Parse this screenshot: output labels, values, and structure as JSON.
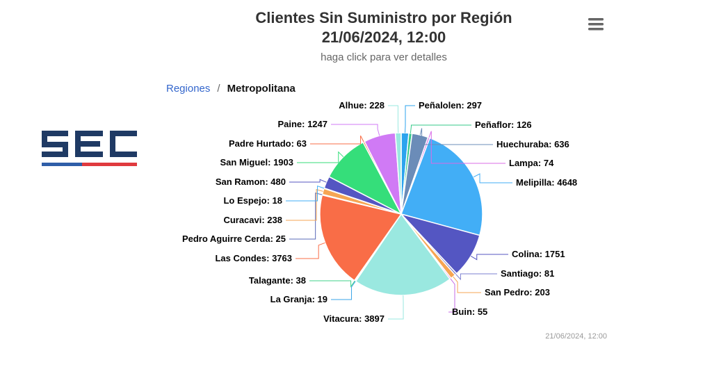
{
  "header": {
    "title_line1": "Clientes Sin Suministro por Región",
    "title_line2": "21/06/2024, 12:00",
    "subtitle": "haga click para ver detalles"
  },
  "breadcrumb": {
    "root": "Regiones",
    "separator": "/",
    "current": "Metropolitana"
  },
  "logo": {
    "text": "SEC",
    "colors": {
      "blue": "#1f3a64",
      "red": "#e03a3e"
    }
  },
  "menu": {
    "icon": "hamburger-menu-icon"
  },
  "footer": {
    "timestamp": "21/06/2024, 12:00"
  },
  "chart_data": {
    "type": "pie",
    "title": "Clientes Sin Suministro por Región",
    "subtitle": "haga click para ver detalles",
    "slices": [
      {
        "name": "Peñalolen",
        "value": 297,
        "color": "#2ca4ee"
      },
      {
        "name": "Peñaflor",
        "value": 126,
        "color": "#35c98a"
      },
      {
        "name": "Huechuraba",
        "value": 636,
        "color": "#6b8cb8"
      },
      {
        "name": "Lampa",
        "value": 74,
        "color": "#d96be6"
      },
      {
        "name": "Melipilla",
        "value": 4648,
        "color": "#42aef6"
      },
      {
        "name": "Colina",
        "value": 1751,
        "color": "#5456c2"
      },
      {
        "name": "Santiago",
        "value": 81,
        "color": "#7b7fd0"
      },
      {
        "name": "San Pedro",
        "value": 203,
        "color": "#f6a553"
      },
      {
        "name": "Buin",
        "value": 55,
        "color": "#c56ae6"
      },
      {
        "name": "Vitacura",
        "value": 3897,
        "color": "#9ae8e0"
      },
      {
        "name": "La Granja",
        "value": 19,
        "color": "#3aa5e8"
      },
      {
        "name": "Talagante",
        "value": 38,
        "color": "#3fd08a"
      },
      {
        "name": "Las Condes",
        "value": 3763,
        "color": "#f96d47"
      },
      {
        "name": "Pedro Aguirre Cerda",
        "value": 25,
        "color": "#5a69b8"
      },
      {
        "name": "Curacavi",
        "value": 238,
        "color": "#f6a553"
      },
      {
        "name": "Lo Espejo",
        "value": 18,
        "color": "#42aef6"
      },
      {
        "name": "San Ramon",
        "value": 480,
        "color": "#5456c2"
      },
      {
        "name": "San Miguel",
        "value": 1903,
        "color": "#35de7a"
      },
      {
        "name": "Padre Hurtado",
        "value": 63,
        "color": "#f96d47"
      },
      {
        "name": "Paine",
        "value": 1247,
        "color": "#d07af5"
      },
      {
        "name": "Alhue",
        "value": 228,
        "color": "#9ae8e0"
      }
    ]
  }
}
